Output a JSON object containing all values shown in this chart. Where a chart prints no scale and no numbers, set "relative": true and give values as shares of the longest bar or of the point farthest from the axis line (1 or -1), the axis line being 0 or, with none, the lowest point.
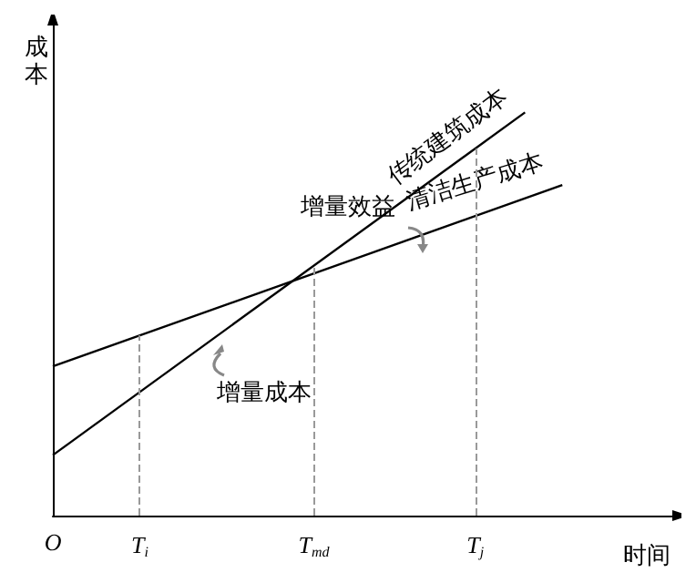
{
  "chart_data": {
    "type": "line",
    "relative": true,
    "xlabel": "时间",
    "ylabel": "成本",
    "categories": [
      "O",
      null,
      null,
      null,
      null,
      null,
      null,
      "T$_{i}$",
      null,
      null,
      null,
      null,
      null,
      null,
      null,
      null,
      null,
      null,
      null,
      null,
      null,
      "T$_{md}$",
      null,
      null,
      null,
      null,
      null,
      null,
      null,
      null,
      null,
      null,
      null,
      null,
      "T$_{j}$",
      null,
      null,
      null,
      null,
      null,
      null,
      null,
      null,
      null,
      null,
      null,
      null,
      null,
      null,
      null,
      null
    ],
    "series": [
      {
        "name": "传统建筑成本",
        "color": "#000000",
        "values": [
          0.15,
          null,
          null,
          null,
          null,
          null,
          null,
          null,
          null,
          null,
          null,
          null,
          null,
          null,
          null,
          null,
          null,
          null,
          null,
          null,
          null,
          null,
          null,
          null,
          null,
          null,
          null,
          null,
          null,
          null,
          null,
          null,
          null,
          null,
          null,
          null,
          null,
          null,
          1,
          null,
          null,
          null,
          null,
          null,
          null,
          null,
          null,
          null,
          null,
          null,
          null
        ]
      },
      {
        "name": "清洁生产成本",
        "color": "#000000",
        "values": [
          0.37,
          null,
          null,
          null,
          null,
          null,
          null,
          null,
          null,
          null,
          null,
          null,
          null,
          null,
          null,
          null,
          null,
          null,
          null,
          null,
          null,
          null,
          null,
          null,
          null,
          null,
          null,
          null,
          null,
          null,
          null,
          null,
          null,
          null,
          null,
          null,
          null,
          null,
          null,
          null,
          null,
          0.82,
          null,
          null,
          null,
          null,
          null,
          null,
          null,
          null,
          null
        ]
      }
    ],
    "ref_lines": [
      {
        "axis": "x",
        "value": "T$_{i}$",
        "color": "#999999",
        "line_style": "dashed"
      },
      {
        "axis": "x",
        "value": "T$_{md}$",
        "color": "#999999",
        "line_style": "dashed"
      },
      {
        "axis": "x",
        "value": "T$_{j}$",
        "color": "#999999",
        "line_style": "dashed"
      }
    ],
    "annotations": [
      "增量效益",
      "增量成本"
    ],
    "grid": false,
    "legend": false,
    "marker": "none",
    "line_style": "solid"
  }
}
